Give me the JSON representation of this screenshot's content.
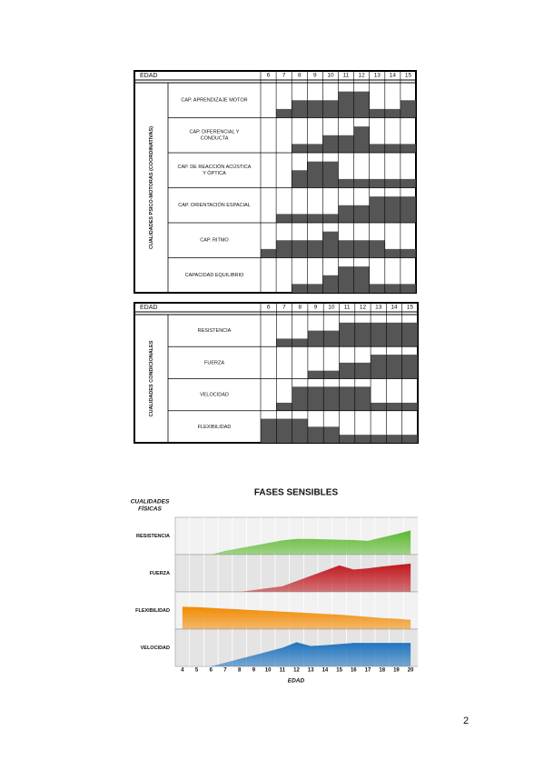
{
  "tables": [
    {
      "header": "EDAD",
      "ages": [
        6,
        7,
        8,
        9,
        10,
        11,
        12,
        13,
        14,
        15
      ],
      "group": "CUALIDADES PSICO-MOTORAS (COORDINATIVAS)",
      "rows": [
        {
          "label": [
            "CAP. APRENDIZAJE MOTOR"
          ],
          "levels": [
            0,
            0.25,
            0.5,
            0.5,
            0.5,
            0.75,
            0.75,
            0.25,
            0.25,
            0.5
          ]
        },
        {
          "label": [
            "CAP. DIFERENCIAL  Y",
            "CONDUCTA"
          ],
          "levels": [
            0,
            0,
            0.25,
            0.25,
            0.5,
            0.5,
            0.75,
            0.25,
            0.25,
            0.25
          ]
        },
        {
          "label": [
            "CAP. DE REACCIÓN ACÚSTICA",
            "Y ÓPTICA"
          ],
          "levels": [
            0,
            0,
            0.5,
            0.75,
            0.75,
            0.25,
            0.25,
            0.25,
            0.25,
            0.25
          ]
        },
        {
          "label": [
            "CAP. ORIENTACIÓN ESPACIAL"
          ],
          "levels": [
            0,
            0.25,
            0.25,
            0.25,
            0.25,
            0.5,
            0.5,
            0.75,
            0.75,
            0.75
          ]
        },
        {
          "label": [
            "CAP. RITMO"
          ],
          "levels": [
            0.25,
            0.5,
            0.5,
            0.5,
            0.75,
            0.5,
            0.5,
            0.5,
            0.25,
            0.25
          ]
        },
        {
          "label": [
            "CAPACIDAD EQUILIBRIO"
          ],
          "levels": [
            0,
            0,
            0.25,
            0.25,
            0.5,
            0.75,
            0.75,
            0.25,
            0.25,
            0.25
          ]
        }
      ]
    },
    {
      "header": "EDAD",
      "ages": [
        6,
        7,
        8,
        9,
        10,
        11,
        12,
        13,
        14,
        15
      ],
      "group": "CUALIDADES CONDICIONALES",
      "rows": [
        {
          "label": [
            "RESISTENCIA"
          ],
          "levels": [
            0,
            0.25,
            0.25,
            0.5,
            0.5,
            0.75,
            0.75,
            0.75,
            0.75,
            0.75
          ]
        },
        {
          "label": [
            "FUERZA"
          ],
          "levels": [
            0,
            0,
            0,
            0.25,
            0.25,
            0.5,
            0.5,
            0.75,
            0.75,
            0.75
          ]
        },
        {
          "label": [
            "VELOCIDAD"
          ],
          "levels": [
            0,
            0.25,
            0.75,
            0.75,
            0.75,
            0.75,
            0.75,
            0.25,
            0.25,
            0.25
          ]
        },
        {
          "label": [
            "FLEXIBILIDAD"
          ],
          "levels": [
            0.75,
            0.75,
            0.75,
            0.5,
            0.5,
            0.25,
            0.25,
            0.25,
            0.25,
            0.25
          ]
        }
      ]
    }
  ],
  "chart_data": {
    "type": "area",
    "title": "FASES SENSIBLES",
    "y_label": [
      "CUALIDADES",
      "FÍSICAS"
    ],
    "x_label": "EDAD",
    "x": [
      4,
      5,
      6,
      7,
      8,
      9,
      10,
      11,
      12,
      13,
      14,
      15,
      16,
      17,
      18,
      19,
      20
    ],
    "xlim": [
      3.5,
      20.5
    ],
    "xticks": [
      4,
      5,
      6,
      7,
      8,
      9,
      10,
      11,
      12,
      13,
      14,
      15,
      16,
      17,
      18,
      19,
      20
    ],
    "ylim": [
      0,
      10
    ],
    "series": [
      {
        "name": "RESISTENCIA",
        "color": "#5cb82e",
        "values": [
          null,
          null,
          0,
          1,
          1.7,
          2.4,
          3.1,
          3.8,
          4.2,
          4.2,
          4.1,
          4,
          3.9,
          3.7,
          4.6,
          5.5,
          6.5
        ]
      },
      {
        "name": "FUERZA",
        "color": "#c0161c",
        "values": [
          null,
          null,
          null,
          null,
          0,
          0.5,
          1,
          1.5,
          2.9,
          4.3,
          5.7,
          7.1,
          6,
          6.3,
          6.8,
          7.2,
          7.6
        ]
      },
      {
        "name": "FLEXIBILIDAD",
        "color": "#f28a00",
        "values": [
          6,
          5.9,
          5.7,
          5.5,
          5.3,
          5.1,
          4.9,
          4.7,
          4.5,
          4.3,
          4.1,
          3.9,
          3.6,
          3.3,
          3,
          2.8,
          2.5
        ]
      },
      {
        "name": "VELOCIDAD",
        "color": "#1e73be",
        "values": [
          null,
          null,
          0,
          1,
          2,
          3,
          4,
          5,
          6.5,
          5.5,
          5.7,
          6,
          6.3,
          6.3,
          6.3,
          6.3,
          6.3
        ]
      }
    ]
  },
  "page_number": "2"
}
